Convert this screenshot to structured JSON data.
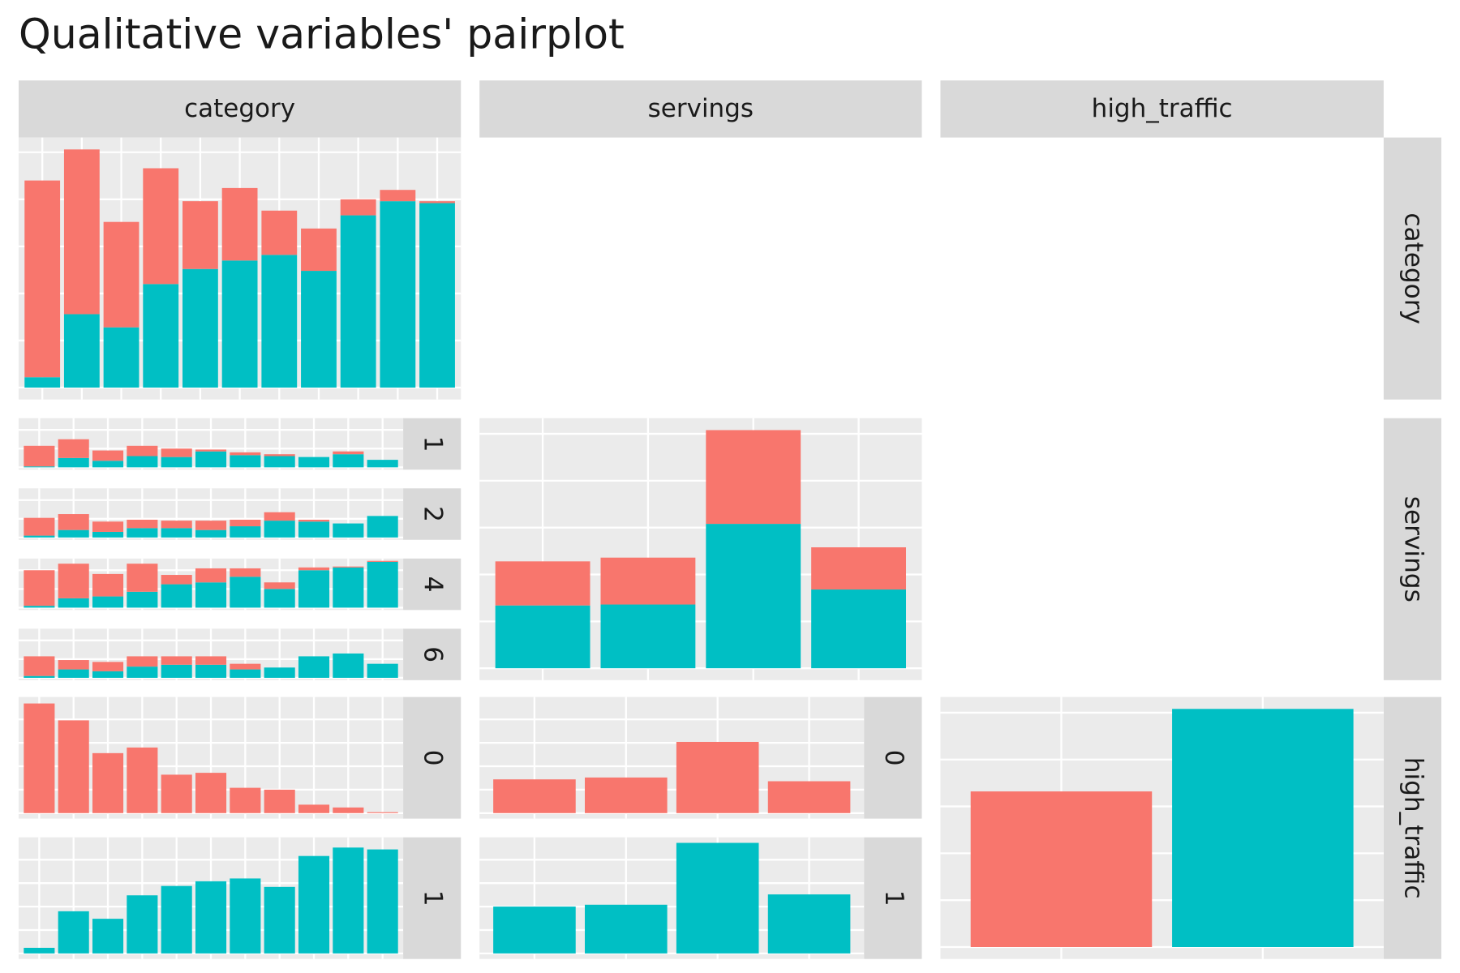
{
  "chart_data": {
    "type": "pairplot",
    "title": "Qualitative variables' pairplot",
    "columns": [
      "category",
      "servings",
      "high_traffic"
    ],
    "rows": [
      "category",
      "servings",
      "high_traffic"
    ],
    "grid": [
      [
        {
          "ylim": [
            0,
            253
          ],
          "yticks": [
            0,
            50,
            100,
            150,
            200,
            250
          ],
          "facets": [
            {
              "series": [
                {
                  "color": "#F8766D",
                  "values": [
                    209,
                    175,
                    112,
                    123,
                    72,
                    77,
                    47,
                    45,
                    17,
                    12,
                    2
                  ]
                },
                {
                  "color": "#00BFC4",
                  "values": [
                    11,
                    78,
                    64,
                    110,
                    126,
                    135,
                    141,
                    124,
                    183,
                    198,
                    196
                  ]
                }
              ]
            }
          ]
        },
        null,
        null
      ],
      [
        {
          "ylim": [
            0,
            50
          ],
          "yticks": [
            0,
            20,
            40
          ],
          "facets": [
            {
              "label": "1",
              "series": [
                {
                  "color": "#F8766D",
                  "values": [
                    22,
                    20,
                    11,
                    11,
                    9,
                    2,
                    3,
                    2,
                    0,
                    3,
                    0
                  ]
                },
                {
                  "color": "#00BFC4",
                  "values": [
                    1,
                    10,
                    7,
                    12,
                    11,
                    17,
                    13,
                    12,
                    11,
                    14,
                    8
                  ]
                }
              ]
            },
            {
              "label": "2",
              "series": [
                {
                  "color": "#F8766D",
                  "values": [
                    19,
                    17,
                    11,
                    9,
                    8,
                    10,
                    7,
                    9,
                    2,
                    0,
                    0
                  ]
                },
                {
                  "color": "#00BFC4",
                  "values": [
                    2,
                    8,
                    6,
                    10,
                    10,
                    8,
                    12,
                    18,
                    17,
                    15,
                    23
                  ]
                }
              ]
            },
            {
              "label": "4",
              "series": [
                {
                  "color": "#F8766D",
                  "values": [
                    38,
                    37,
                    24,
                    30,
                    10,
                    15,
                    9,
                    7,
                    3,
                    1,
                    1
                  ]
                },
                {
                  "color": "#00BFC4",
                  "values": [
                    2,
                    10,
                    12,
                    17,
                    25,
                    27,
                    33,
                    20,
                    40,
                    43,
                    49
                  ]
                }
              ]
            },
            {
              "label": "6",
              "series": [
                {
                  "color": "#F8766D",
                  "values": [
                    21,
                    10,
                    10,
                    11,
                    9,
                    9,
                    6,
                    0,
                    0,
                    0,
                    0
                  ]
                },
                {
                  "color": "#00BFC4",
                  "values": [
                    2,
                    9,
                    7,
                    12,
                    14,
                    14,
                    9,
                    11,
                    23,
                    26,
                    15
                  ]
                }
              ]
            }
          ]
        },
        {
          "ylim": [
            0,
            254
          ],
          "yticks": [
            0,
            50,
            100,
            150,
            200,
            250
          ],
          "facets": [
            {
              "series": [
                {
                  "color": "#F8766D",
                  "values": [
                    47,
                    50,
                    100,
                    45
                  ]
                },
                {
                  "color": "#00BFC4",
                  "values": [
                    67,
                    68,
                    154,
                    84
                  ]
                }
              ]
            }
          ]
        },
        null
      ],
      [
        {
          "ylim": [
            0,
            118
          ],
          "yticks": [
            0,
            25,
            50,
            75,
            100
          ],
          "facets": [
            {
              "label": "0",
              "series": [
                {
                  "color": "#F8766D",
                  "values": [
                    117,
                    99,
                    64,
                    70,
                    41,
                    43,
                    27,
                    25,
                    9,
                    6,
                    1
                  ]
                }
              ]
            },
            {
              "label": "1",
              "series": [
                {
                  "color": "#00BFC4",
                  "values": [
                    6,
                    45,
                    37,
                    62,
                    72,
                    77,
                    80,
                    71,
                    104,
                    113,
                    111
                  ]
                }
              ]
            }
          ]
        },
        {
          "ylim": [
            0,
            118
          ],
          "yticks": [
            0,
            25,
            50,
            75,
            100
          ],
          "facets": [
            {
              "label": "0",
              "series": [
                {
                  "color": "#F8766D",
                  "values": [
                    36,
                    38,
                    76,
                    34
                  ]
                }
              ]
            },
            {
              "label": "1",
              "series": [
                {
                  "color": "#00BFC4",
                  "values": [
                    50,
                    52,
                    118,
                    63
                  ]
                }
              ]
            }
          ]
        },
        {
          "ylim": [
            0,
            254
          ],
          "yticks": [
            0,
            50,
            100,
            150,
            200,
            250
          ],
          "facets": [
            {
              "series": [
                {
                  "color": "#F8766D",
                  "values": [
                    166,
                    null
                  ]
                },
                {
                  "color": "#00BFC4",
                  "values": [
                    null,
                    254
                  ]
                }
              ]
            }
          ]
        }
      ]
    ]
  }
}
